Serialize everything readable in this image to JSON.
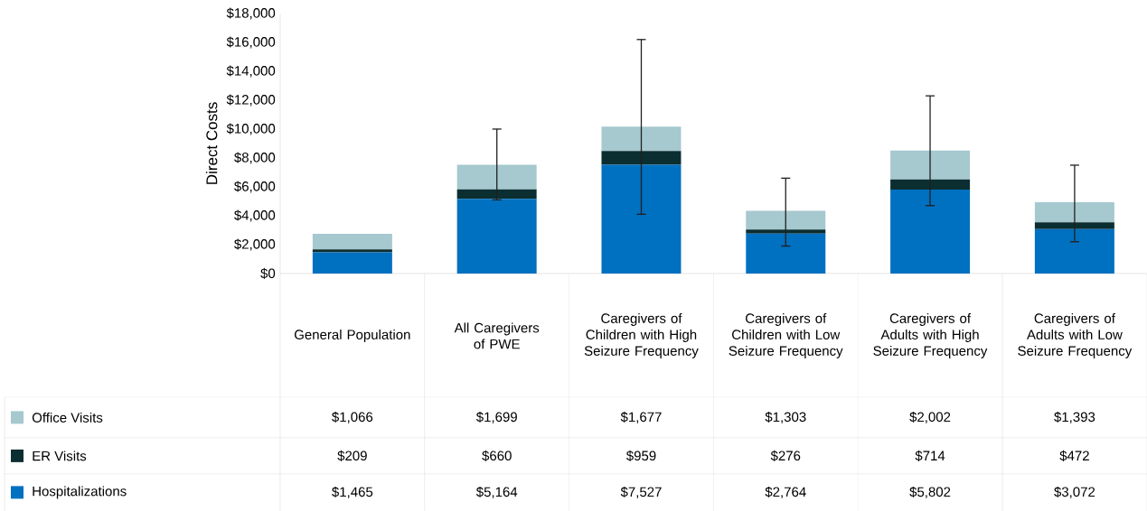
{
  "chart_data": {
    "type": "bar",
    "stacked": true,
    "ylabel": "Direct Costs",
    "legend": "bottom left",
    "categories": [
      "General Population",
      "All Caregivers of PWE",
      "Caregivers of Children with High Seizure Frequency",
      "Caregivers of Children with Low Seizure Frequency",
      "Caregivers of Adults with High Seizure Frequency",
      "Caregivers of Adults with Low Seizure Frequency"
    ],
    "series": [
      {
        "name": "Hospitalizations",
        "color": "#0070c0",
        "values": [
          1465,
          5164,
          7527,
          2764,
          5802,
          3072
        ],
        "value_labels": [
          "$1,465",
          "$5,164",
          "$7,527",
          "$2,764",
          "$5,802",
          "$3,072"
        ]
      },
      {
        "name": "ER Visits",
        "color": "#0b2e31",
        "values": [
          209,
          660,
          959,
          276,
          714,
          472
        ],
        "value_labels": [
          "$209",
          "$660",
          "$959",
          "$276",
          "$714",
          "$472"
        ]
      },
      {
        "name": "Office Visits",
        "color": "#a6c8cf",
        "values": [
          1066,
          1699,
          1677,
          1303,
          2002,
          1393
        ],
        "value_labels": [
          "$1,066",
          "$1,699",
          "$1,677",
          "$1,303",
          "$2,002",
          "$1,393"
        ],
        "errors": [
          null,
          [
            5100,
            10000
          ],
          [
            4100,
            16200
          ],
          [
            1900,
            6600
          ],
          [
            4700,
            12300
          ],
          [
            2200,
            7500
          ]
        ]
      }
    ],
    "ylim": [
      0,
      18000
    ],
    "yticks": [
      {
        "value": 0,
        "label": "$0"
      },
      {
        "value": 2000,
        "label": "$2,000"
      },
      {
        "value": 4000,
        "label": "$4,000"
      },
      {
        "value": 6000,
        "label": "$6,000"
      },
      {
        "value": 8000,
        "label": "$8,000"
      },
      {
        "value": 10000,
        "label": "$10,000"
      },
      {
        "value": 12000,
        "label": "$12,000"
      },
      {
        "value": 14000,
        "label": "$14,000"
      },
      {
        "value": 16000,
        "label": "$16,000"
      },
      {
        "value": 18000,
        "label": "$18,000"
      }
    ]
  }
}
